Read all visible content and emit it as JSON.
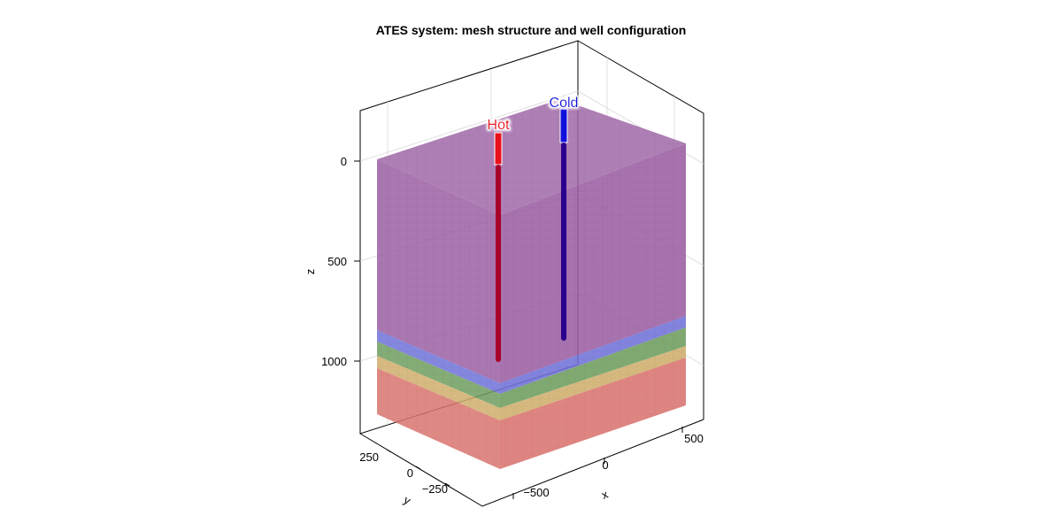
{
  "title": "ATES system: mesh structure and well configuration",
  "axes": {
    "x_label": "x",
    "y_label": "y",
    "z_label": "z",
    "x_ticks": [
      "−500",
      "0",
      "500"
    ],
    "y_ticks": [
      "250",
      "0",
      "−250"
    ],
    "z_ticks": [
      "0",
      "500",
      "1000"
    ]
  },
  "layers": [
    {
      "color": "#9b5fa3"
    },
    {
      "color": "#6f72d8"
    },
    {
      "color": "#6e9d5f"
    },
    {
      "color": "#cfae6b"
    },
    {
      "color": "#d9746f"
    }
  ],
  "wells": [
    {
      "label": "Hot",
      "color": "#e8101a"
    },
    {
      "label": "Cold",
      "color": "#1010dd"
    }
  ]
}
